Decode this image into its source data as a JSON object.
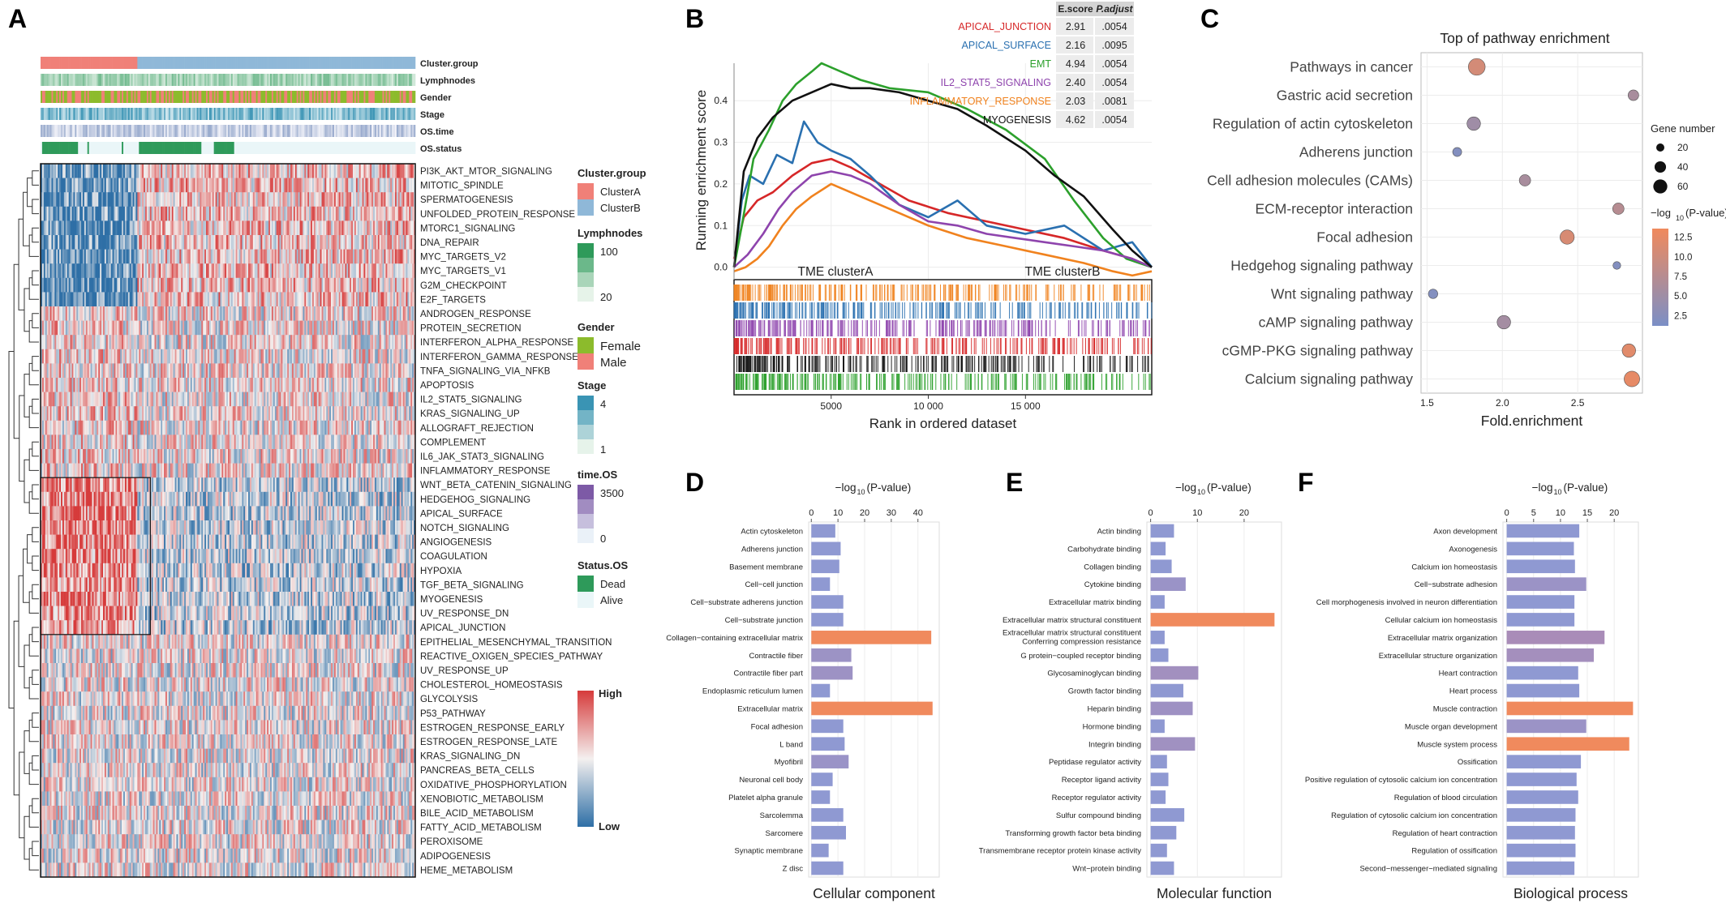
{
  "panel_letters": {
    "a": "A",
    "b": "B",
    "c": "C",
    "d": "D",
    "e": "E",
    "f": "F"
  },
  "colors": {
    "heat_high": "#d63b3b",
    "heat_mid": "#f4f0ef",
    "heat_low": "#2e6fa6",
    "cluster_a": "#f08078",
    "cluster_b": "#8fb8d8",
    "lymph": "#2e9a5a",
    "gender_female": "#8cbb2c",
    "gender_male": "#f08078",
    "stage": "#3a94b4",
    "ostime": "#7d5aa6",
    "osstatus": "#2e9a5a",
    "bubble_high": "#f08a5d",
    "bubble_low": "#7b8fc6",
    "bar_high": "#f08a5d",
    "bar_mid": "#a98cb8",
    "bar_low": "#8f99d2"
  },
  "heatmap": {
    "annotation_labels": [
      "Cluster.group",
      "Lymphnodes",
      "Gender",
      "Stage",
      "OS.time",
      "OS.status"
    ],
    "pathways": [
      "PI3K_AKT_MTOR_SIGNALING",
      "MITOTIC_SPINDLE",
      "SPERMATOGENESIS",
      "UNFOLDED_PROTEIN_RESPONSE",
      "MTORC1_SIGNALING",
      "DNA_REPAIR",
      "MYC_TARGETS_V2",
      "MYC_TARGETS_V1",
      "G2M_CHECKPOINT",
      "E2F_TARGETS",
      "ANDROGEN_RESPONSE",
      "PROTEIN_SECRETION",
      "INTERFERON_ALPHA_RESPONSE",
      "INTERFERON_GAMMA_RESPONSE",
      "TNFA_SIGNALING_VIA_NFKB",
      "APOPTOSIS",
      "IL2_STAT5_SIGNALING",
      "KRAS_SIGNALING_UP",
      "ALLOGRAFT_REJECTION",
      "COMPLEMENT",
      "IL6_JAK_STAT3_SIGNALING",
      "INFLAMMATORY_RESPONSE",
      "WNT_BETA_CATENIN_SIGNALING",
      "HEDGEHOG_SIGNALING",
      "APICAL_SURFACE",
      "NOTCH_SIGNALING",
      "ANGIOGENESIS",
      "COAGULATION",
      "HYPOXIA",
      "TGF_BETA_SIGNALING",
      "MYOGENESIS",
      "UV_RESPONSE_DN",
      "APICAL_JUNCTION",
      "EPITHELIAL_MESENCHYMAL_TRANSITION",
      "REACTIVE_OXIGEN_SPECIES_PATHWAY",
      "UV_RESPONSE_UP",
      "CHOLESTEROL_HOMEOSTASIS",
      "GLYCOLYSIS",
      "P53_PATHWAY",
      "ESTROGEN_RESPONSE_EARLY",
      "ESTROGEN_RESPONSE_LATE",
      "KRAS_SIGNALING_DN",
      "PANCREAS_BETA_CELLS",
      "OXIDATIVE_PHOSPHORYLATION",
      "XENOBIOTIC_METABOLISM",
      "BILE_ACID_METABOLISM",
      "FATTY_ACID_METABOLISM",
      "PEROXISOME",
      "ADIPOGENESIS",
      "HEME_METABOLISM"
    ],
    "legend": {
      "cluster_title": "Cluster.group",
      "cluster_items": [
        "ClusterA",
        "ClusterB"
      ],
      "lymph_title": "Lymphnodes",
      "lymph_ticks": [
        "100",
        "20"
      ],
      "gender_title": "Gender",
      "gender_items": [
        "Female",
        "Male"
      ],
      "stage_title": "Stage",
      "stage_ticks": [
        "4",
        "1"
      ],
      "ostime_title": "time.OS",
      "ostime_ticks": [
        "3500",
        "0"
      ],
      "status_title": "Status.OS",
      "status_items": [
        "Dead",
        "Alive"
      ],
      "scale_high": "High",
      "scale_low": "Low"
    }
  },
  "chart_data": [
    {
      "panel": "B",
      "type": "line",
      "ylabel": "Running enrichment score",
      "xlabel": "Rank in ordered dataset",
      "x_ticks": [
        "5000",
        "10 000",
        "15 000"
      ],
      "x_tick_values": [
        5000,
        10000,
        15000
      ],
      "y_ticks": [
        "0.0",
        "0.1",
        "0.2",
        "0.3",
        "0.4"
      ],
      "y_tick_values": [
        0,
        0.1,
        0.2,
        0.3,
        0.4
      ],
      "xlim": [
        0,
        21500
      ],
      "ylim": [
        -0.03,
        0.49
      ],
      "group_labels": [
        "TME clusterA",
        "TME clusterB"
      ],
      "table_headers": [
        "E.score",
        "P.adjust"
      ],
      "series": [
        {
          "name": "APICAL_JUNCTION",
          "color": "#d62728",
          "escore": "2.91",
          "padjust": ".0054",
          "x": [
            0,
            500,
            1200,
            2000,
            3000,
            4000,
            5000,
            6000,
            7500,
            9000,
            11000,
            13000,
            15000,
            17000,
            19000,
            20500,
            21500
          ],
          "y": [
            0.02,
            0.12,
            0.16,
            0.18,
            0.22,
            0.25,
            0.26,
            0.24,
            0.2,
            0.16,
            0.13,
            0.11,
            0.09,
            0.07,
            0.04,
            0.02,
            0.0
          ]
        },
        {
          "name": "APICAL_SURFACE",
          "color": "#2a70b0",
          "escore": "2.16",
          "padjust": ".0095",
          "x": [
            0,
            400,
            800,
            1500,
            2200,
            3000,
            3600,
            4300,
            5000,
            6000,
            7000,
            8500,
            10000,
            11500,
            13000,
            15000,
            17000,
            19000,
            20500,
            21500
          ],
          "y": [
            0.0,
            0.16,
            0.22,
            0.2,
            0.27,
            0.25,
            0.35,
            0.3,
            0.28,
            0.26,
            0.22,
            0.15,
            0.12,
            0.16,
            0.1,
            0.08,
            0.1,
            0.04,
            0.06,
            0.0
          ]
        },
        {
          "name": "EMT",
          "color": "#2ca02c",
          "escore": "4.94",
          "padjust": ".0054",
          "x": [
            0,
            400,
            1000,
            1800,
            2500,
            3200,
            4000,
            4500,
            5500,
            6500,
            8000,
            10000,
            12000,
            14000,
            16000,
            17500,
            19000,
            20200,
            21500
          ],
          "y": [
            0.0,
            0.1,
            0.26,
            0.33,
            0.4,
            0.44,
            0.47,
            0.49,
            0.47,
            0.45,
            0.43,
            0.42,
            0.38,
            0.33,
            0.26,
            0.16,
            0.07,
            0.02,
            0.0
          ]
        },
        {
          "name": "IL2_STAT5_SIGNALING",
          "color": "#8e44ad",
          "escore": "2.40",
          "padjust": ".0054",
          "x": [
            0,
            700,
            1500,
            2300,
            3000,
            4000,
            5000,
            6000,
            7000,
            8500,
            10000,
            11500,
            13000,
            14500,
            16000,
            17500,
            19000,
            20500,
            21500
          ],
          "y": [
            0.0,
            0.03,
            0.08,
            0.14,
            0.18,
            0.22,
            0.23,
            0.22,
            0.2,
            0.15,
            0.11,
            0.1,
            0.08,
            0.07,
            0.06,
            0.05,
            0.04,
            0.02,
            0.0
          ]
        },
        {
          "name": "INFLAMMATORY_RESPONSE",
          "color": "#f0821e",
          "escore": "2.03",
          "padjust": ".0081",
          "x": [
            0,
            600,
            1200,
            1800,
            2500,
            3200,
            4000,
            5000,
            6000,
            7000,
            8500,
            10000,
            12000,
            14000,
            16000,
            18000,
            19500,
            20500,
            21500
          ],
          "y": [
            -0.01,
            0.0,
            0.02,
            0.05,
            0.1,
            0.14,
            0.17,
            0.2,
            0.18,
            0.16,
            0.13,
            0.1,
            0.07,
            0.05,
            0.03,
            0.01,
            -0.01,
            -0.02,
            -0.01
          ]
        },
        {
          "name": "MYOGENESIS",
          "color": "#111111",
          "escore": "4.62",
          "padjust": ".0054",
          "x": [
            0,
            500,
            1200,
            2000,
            3000,
            4000,
            5000,
            6000,
            7000,
            8500,
            10000,
            11500,
            13000,
            15000,
            16500,
            18000,
            19500,
            20500,
            21500
          ],
          "y": [
            0.0,
            0.23,
            0.31,
            0.36,
            0.4,
            0.42,
            0.44,
            0.43,
            0.43,
            0.42,
            0.4,
            0.38,
            0.34,
            0.28,
            0.22,
            0.17,
            0.09,
            0.04,
            0.0
          ]
        }
      ]
    },
    {
      "panel": "C",
      "type": "scatter",
      "title": "Top of pathway enrichment",
      "xlabel": "Fold.enrichment",
      "x_ticks": [
        "1.5",
        "2.0",
        "2.5"
      ],
      "x_tick_values": [
        1.5,
        2.0,
        2.5
      ],
      "xlim": [
        1.46,
        2.93
      ],
      "size_legend_title": "Gene number",
      "size_ticks": [
        "20",
        "40",
        "60"
      ],
      "color_legend_title": "-log10(P-value)",
      "color_ticks": [
        "12.5",
        "10.0",
        "7.5",
        "5.0",
        "2.5"
      ],
      "color_tick_values": [
        12.5,
        10.0,
        7.5,
        5.0,
        2.5
      ],
      "color_range": [
        1.2,
        13.6
      ],
      "categories": [
        "Pathways in cancer",
        "Gastric acid secretion",
        "Regulation of actin cytoskeleton",
        "Adherens junction",
        "Cell adhesion molecules (CAMs)",
        "ECM-receptor interaction",
        "Focal adhesion",
        "Hedgehog signaling pathway",
        "Wnt signaling pathway",
        "cAMP signaling pathway",
        "cGMP-PKG signaling pathway",
        "Calcium signaling pathway"
      ],
      "fold_enrichment": [
        1.83,
        2.87,
        1.81,
        1.7,
        2.15,
        2.77,
        2.43,
        2.76,
        1.54,
        2.01,
        2.84,
        2.86
      ],
      "gene_number": [
        70,
        28,
        45,
        20,
        32,
        32,
        50,
        15,
        22,
        45,
        45,
        60
      ],
      "neg_log10_p": [
        10.5,
        6.0,
        5.0,
        2.0,
        6.0,
        7.5,
        11.0,
        2.0,
        2.0,
        5.5,
        12.0,
        12.5
      ]
    },
    {
      "panel": "D",
      "type": "bar",
      "orientation": "horizontal",
      "xlabel_prefix": "−log",
      "xlabel_sub": "10",
      "xlabel_suffix": "(P-value)",
      "category_label": "Cellular component",
      "x_ticks": [
        "0",
        "10",
        "20",
        "30",
        "40"
      ],
      "x_tick_values": [
        0,
        10,
        20,
        30,
        40
      ],
      "xlim": [
        -1,
        48
      ],
      "categories": [
        "Actin cytoskeleton",
        "Adherens junction",
        "Basement membrane",
        "Cell−cell junction",
        "Cell−substrate adherens junction",
        "Cell−substrate junction",
        "Collagen−containing extracellular matrix",
        "Contractile fiber",
        "Contractile fiber part",
        "Endoplasmic reticulum lumen",
        "Extracellular matrix",
        "Focal adhesion",
        "L band",
        "Myofibril",
        "Neuronal cell body",
        "Platelet alpha granule",
        "Sarcolemma",
        "Sarcomere",
        "Synaptic membrane",
        "Z disc"
      ],
      "values": [
        9,
        11,
        10.5,
        7,
        12,
        12,
        45,
        15,
        15.5,
        7,
        45.5,
        12,
        12.5,
        14,
        8,
        7,
        12,
        13,
        6.5,
        12
      ]
    },
    {
      "panel": "E",
      "type": "bar",
      "orientation": "horizontal",
      "xlabel_prefix": "−log",
      "xlabel_sub": "10",
      "xlabel_suffix": "(P-value)",
      "category_label": "Molecular function",
      "x_ticks": [
        "0",
        "10",
        "20"
      ],
      "x_tick_values": [
        0,
        10,
        20
      ],
      "xlim": [
        -0.8,
        28
      ],
      "categories": [
        "Actin binding",
        "Carbohydrate binding",
        "Collagen binding",
        "Cytokine binding",
        "Extracellular matrix binding",
        "Extracellular matrix structural constituent",
        "Extracellular matrix structural constituent conferring compression resistance",
        "G protein−coupled receptor binding",
        "Glycosaminoglycan binding",
        "Growth factor binding",
        "Heparin binding",
        "Hormone binding",
        "Integrin binding",
        "Peptidase regulator activity",
        "Receptor ligand activity",
        "Receptor regulator activity",
        "Sulfur compound binding",
        "Transforming growth factor beta binding",
        "Transmembrane receptor protein kinase activity",
        "Wnt−protein binding"
      ],
      "label_lines": {
        "6": [
          "Extracellular matrix structural constituent",
          "Conferring compression resistance"
        ]
      },
      "values": [
        5,
        3.2,
        4.5,
        7.5,
        3,
        26.5,
        3,
        3.8,
        10.2,
        7,
        9,
        3,
        9.5,
        3.5,
        3.8,
        3.2,
        7.2,
        5.5,
        3.5,
        5
      ]
    },
    {
      "panel": "F",
      "type": "bar",
      "orientation": "horizontal",
      "xlabel_prefix": "−log",
      "xlabel_sub": "10",
      "xlabel_suffix": "(P-value)",
      "category_label": "Biological process",
      "x_ticks": [
        "0",
        "5",
        "10",
        "15",
        "20"
      ],
      "x_tick_values": [
        0,
        5,
        10,
        15,
        20
      ],
      "xlim": [
        -0.7,
        24.5
      ],
      "categories": [
        "Axon development",
        "Axonogenesis",
        "Calcium ion homeostasis",
        "Cell−substrate adhesion",
        "Cell morphogenesis involved in neuron differentiation",
        "Cellular calcium ion homeostasis",
        "Extracellular matrix organization",
        "Extracellular structure organization",
        "Heart contraction",
        "Heart process",
        "Muscle contraction",
        "Muscle organ development",
        "Muscle system process",
        "Ossification",
        "Positive regulation of cytosolic calcium ion concentration",
        "Regulation of blood circulation",
        "Regulation of cytosolic calcium ion concentration",
        "Regulation of heart contraction",
        "Regulation of ossification",
        "Second−messenger−mediated signaling"
      ],
      "values": [
        13.5,
        12.5,
        12.7,
        14.8,
        12.6,
        12.6,
        18.2,
        16.2,
        13.3,
        13.5,
        23.5,
        14.8,
        22.8,
        13.8,
        13,
        13.3,
        12.8,
        12.7,
        12.8,
        12.6
      ]
    }
  ]
}
